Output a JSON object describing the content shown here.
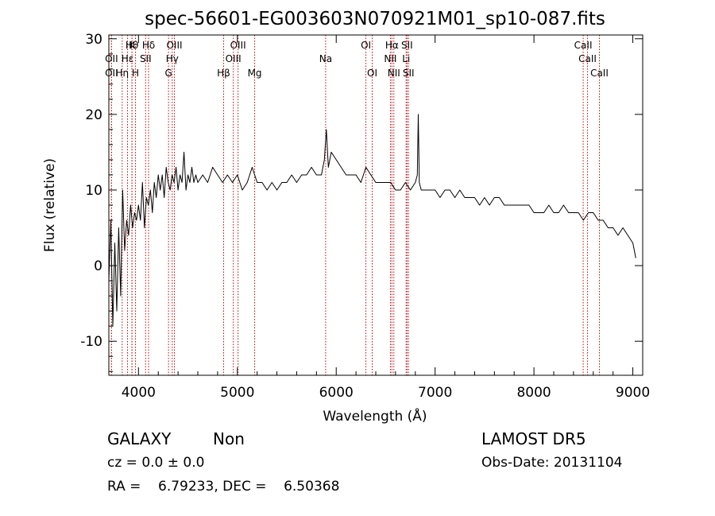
{
  "chart_data": {
    "type": "line",
    "title": "spec-56601-EG003603N070921M01_sp10-087.fits",
    "xlabel": "Wavelength (Å)",
    "ylabel": "Flux (relative)",
    "xlim": [
      3700,
      9100
    ],
    "ylim": [
      -14.5,
      30.5
    ],
    "xticks": [
      4000,
      5000,
      6000,
      7000,
      8000,
      9000
    ],
    "yticks": [
      -10,
      0,
      10,
      20,
      30
    ],
    "grid": false,
    "series": [
      {
        "x": [
          3700,
          3720,
          3740,
          3760,
          3780,
          3800,
          3820,
          3840,
          3860,
          3880,
          3900,
          3920,
          3940,
          3960,
          3980,
          4000,
          4020,
          4040,
          4060,
          4080,
          4100,
          4120,
          4140,
          4160,
          4180,
          4200,
          4220,
          4240,
          4260,
          4280,
          4300,
          4320,
          4340,
          4360,
          4380,
          4400,
          4420,
          4440,
          4460,
          4480,
          4500,
          4520,
          4540,
          4560,
          4580,
          4600,
          4650,
          4700,
          4750,
          4800,
          4850,
          4900,
          4950,
          5000,
          5050,
          5100,
          5150,
          5200,
          5250,
          5300,
          5350,
          5400,
          5450,
          5500,
          5550,
          5600,
          5650,
          5700,
          5750,
          5800,
          5850,
          5880,
          5900,
          5920,
          5950,
          6000,
          6050,
          6100,
          6150,
          6200,
          6250,
          6300,
          6350,
          6400,
          6450,
          6500,
          6550,
          6600,
          6650,
          6700,
          6750,
          6800,
          6820,
          6830,
          6840,
          6860,
          6900,
          6950,
          7000,
          7050,
          7100,
          7150,
          7200,
          7250,
          7300,
          7350,
          7400,
          7450,
          7500,
          7550,
          7600,
          7650,
          7700,
          7750,
          7800,
          7850,
          7900,
          7950,
          8000,
          8050,
          8100,
          8150,
          8200,
          8250,
          8300,
          8350,
          8400,
          8450,
          8500,
          8550,
          8600,
          8650,
          8700,
          8750,
          8800,
          8850,
          8900,
          8950,
          9000,
          9030
        ],
        "y": [
          -2,
          6,
          -8,
          3,
          -6,
          5,
          -4,
          10,
          2,
          6,
          4,
          8,
          5,
          7,
          6,
          8,
          6,
          11,
          5,
          9,
          8,
          10,
          7,
          11,
          9,
          12,
          10,
          12,
          9,
          13,
          11,
          10,
          12,
          11,
          13,
          10,
          12,
          11,
          15,
          10,
          12,
          11,
          13,
          11,
          12,
          11,
          12,
          11,
          13,
          12,
          11,
          12,
          11,
          12,
          10,
          11,
          13,
          11,
          11,
          10,
          11,
          10,
          11,
          11,
          12,
          11,
          12,
          12,
          13,
          12,
          12,
          14,
          18,
          13,
          15,
          14,
          13,
          12,
          12,
          12,
          11,
          13,
          12,
          11,
          11,
          11,
          11,
          10,
          10,
          11,
          10,
          11,
          12,
          20,
          11,
          10,
          10,
          10,
          10,
          9,
          10,
          10,
          9,
          10,
          9,
          9,
          9,
          8,
          9,
          8,
          9,
          9,
          8,
          8,
          8,
          8,
          8,
          8,
          7,
          7,
          7,
          8,
          7,
          7,
          8,
          7,
          7,
          7,
          6,
          7,
          7,
          6,
          6,
          5,
          5,
          4,
          5,
          4,
          3,
          1
        ]
      }
    ],
    "lines": [
      {
        "x": 3727,
        "label": "OII",
        "row": 3
      },
      {
        "x": 3727,
        "label": "OII",
        "row": 2
      },
      {
        "x": 3835,
        "label": "Hη",
        "row": 3
      },
      {
        "x": 3889,
        "label": "Hε",
        "row": 2
      },
      {
        "x": 3934,
        "label": "Hθ",
        "row": 1
      },
      {
        "x": 3969,
        "label": "H",
        "row": 3
      },
      {
        "x": 3934,
        "label": "K",
        "row": 1
      },
      {
        "x": 4102,
        "label": "Hδ",
        "row": 1
      },
      {
        "x": 4072,
        "label": "SII",
        "row": 2
      },
      {
        "x": 4304,
        "label": "G",
        "row": 3
      },
      {
        "x": 4341,
        "label": "Hγ",
        "row": 2
      },
      {
        "x": 4363,
        "label": "OIII",
        "row": 1
      },
      {
        "x": 4861,
        "label": "Hβ",
        "row": 3
      },
      {
        "x": 4959,
        "label": "OIII",
        "row": 2
      },
      {
        "x": 5007,
        "label": "OIII",
        "row": 1
      },
      {
        "x": 5175,
        "label": "Mg",
        "row": 3
      },
      {
        "x": 5893,
        "label": "Na",
        "row": 2
      },
      {
        "x": 6300,
        "label": "OI",
        "row": 1
      },
      {
        "x": 6364,
        "label": "OI",
        "row": 3
      },
      {
        "x": 6548,
        "label": "NII",
        "row": 2
      },
      {
        "x": 6563,
        "label": "Hα",
        "row": 1
      },
      {
        "x": 6583,
        "label": "NII",
        "row": 3
      },
      {
        "x": 6707,
        "label": "Li",
        "row": 2
      },
      {
        "x": 6716,
        "label": "SII",
        "row": 1
      },
      {
        "x": 6731,
        "label": "SII",
        "row": 3
      },
      {
        "x": 8498,
        "label": "CaII",
        "row": 1
      },
      {
        "x": 8542,
        "label": "CaII",
        "row": 2
      },
      {
        "x": 8662,
        "label": "CaII",
        "row": 3
      }
    ]
  },
  "info": {
    "class": "GALAXY",
    "subclass": "Non",
    "cz": "cz = 0.0 ± 0.0",
    "radec": "RA =    6.79233, DEC =    6.50368",
    "survey": "LAMOST DR5",
    "obsdate": "Obs-Date: 20131104"
  },
  "colors": {
    "spectrum": "#000000",
    "line_marker": "#cc0000",
    "axes": "#000000"
  }
}
